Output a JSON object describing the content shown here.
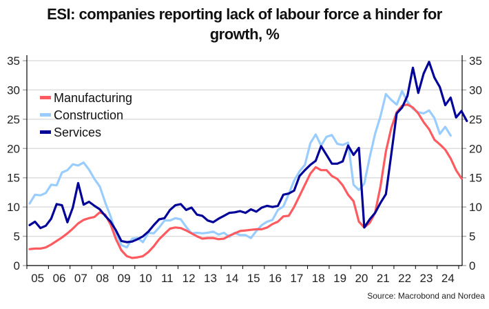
{
  "header": {
    "title_line1": "ESI: companies reporting lack of labour force a hinder for",
    "title_line2": "growth, %"
  },
  "footer": {
    "source": "Source: Macrobond and Nordea"
  },
  "colors": {
    "manufacturing": "#FF5A5F",
    "construction": "#99CCFF",
    "services": "#000099",
    "grid": "#DDDDDD",
    "axis": "#000000"
  },
  "chart_data": {
    "type": "line",
    "title": "ESI: companies reporting lack of labour force a hinder for growth, %",
    "xlabel": "",
    "ylabel": "",
    "ylim": [
      0,
      35
    ],
    "yticks": [
      0,
      5,
      10,
      15,
      20,
      25,
      30,
      35
    ],
    "y_axis_both_sides": true,
    "grid": true,
    "legend_position": "upper-left",
    "frequency": "quarterly",
    "x_start": "2005Q1",
    "categories": [
      "05",
      "06",
      "07",
      "08",
      "09",
      "10",
      "11",
      "12",
      "13",
      "14",
      "15",
      "16",
      "17",
      "18",
      "19",
      "20",
      "21",
      "22",
      "23",
      "24"
    ],
    "series": [
      {
        "name": "Manufacturing",
        "color": "#FF5A5F",
        "values": [
          2.8,
          2.9,
          2.9,
          3.1,
          3.6,
          4.2,
          4.8,
          5.5,
          6.3,
          7.2,
          7.8,
          8.1,
          8.3,
          9.1,
          8.7,
          7.0,
          4.5,
          2.6,
          1.6,
          1.3,
          1.4,
          1.6,
          2.3,
          3.3,
          4.5,
          5.4,
          6.3,
          6.5,
          6.4,
          6.0,
          5.5,
          5.0,
          4.6,
          4.7,
          4.7,
          4.5,
          4.6,
          5.1,
          5.5,
          5.9,
          6.0,
          6.1,
          6.2,
          6.2,
          6.5,
          7.1,
          7.5,
          8.4,
          8.5,
          10.0,
          11.9,
          13.8,
          15.7,
          16.8,
          16.3,
          16.3,
          15.3,
          14.8,
          13.7,
          12.1,
          11.0,
          7.5,
          6.5,
          7.3,
          9.0,
          13.5,
          19.5,
          23.5,
          26.2,
          27.3,
          27.5,
          27.0,
          26.0,
          24.5,
          23.3,
          21.5,
          20.7,
          19.8,
          18.3,
          16.3,
          14.9
        ]
      },
      {
        "name": "Construction",
        "color": "#99CCFF",
        "values": [
          10.6,
          12.1,
          12.0,
          12.4,
          13.8,
          13.7,
          15.9,
          16.3,
          17.3,
          17.1,
          17.6,
          16.4,
          14.8,
          13.5,
          10.8,
          8.4,
          5.5,
          3.5,
          3.1,
          4.6,
          4.7,
          4.0,
          5.6,
          5.5,
          6.5,
          7.7,
          7.7,
          8.1,
          7.9,
          6.6,
          5.5,
          5.6,
          5.5,
          5.6,
          5.8,
          5.3,
          5.6,
          4.9,
          5.6,
          5.2,
          5.2,
          4.7,
          5.9,
          6.9,
          7.5,
          7.8,
          9.5,
          10.1,
          12.2,
          14.5,
          16.1,
          17.2,
          20.9,
          22.4,
          20.5,
          22.0,
          22.3,
          20.8,
          20.6,
          21.0,
          13.8,
          12.9,
          14.0,
          18.5,
          22.5,
          25.5,
          29.3,
          28.3,
          27.5,
          29.8,
          28.0,
          26.8,
          26.2,
          26.0,
          26.5,
          25.2,
          22.5,
          23.7,
          22.2
        ]
      },
      {
        "name": "Services",
        "color": "#000099",
        "values": [
          6.9,
          7.5,
          6.4,
          6.8,
          8.0,
          10.5,
          10.3,
          7.4,
          9.9,
          14.1,
          10.4,
          10.9,
          10.2,
          9.6,
          8.5,
          7.5,
          6.0,
          4.2,
          4.0,
          4.1,
          4.5,
          5.0,
          5.8,
          6.9,
          7.9,
          8.1,
          9.5,
          10.3,
          10.5,
          9.5,
          9.9,
          8.7,
          8.5,
          7.7,
          7.4,
          8.0,
          8.5,
          9.0,
          9.1,
          9.3,
          9.0,
          9.6,
          9.2,
          9.9,
          10.2,
          10.0,
          10.2,
          12.1,
          12.3,
          12.8,
          15.3,
          16.3,
          17.2,
          17.9,
          20.4,
          18.9,
          17.4,
          17.4,
          17.8,
          20.5,
          18.9,
          20.1,
          6.5,
          7.9,
          9.0,
          10.7,
          12.2,
          19.0,
          26.0,
          27.0,
          29.0,
          33.8,
          29.5,
          32.8,
          34.8,
          32.1,
          30.5,
          27.4,
          28.7,
          25.3,
          26.4,
          24.7
        ]
      }
    ]
  }
}
